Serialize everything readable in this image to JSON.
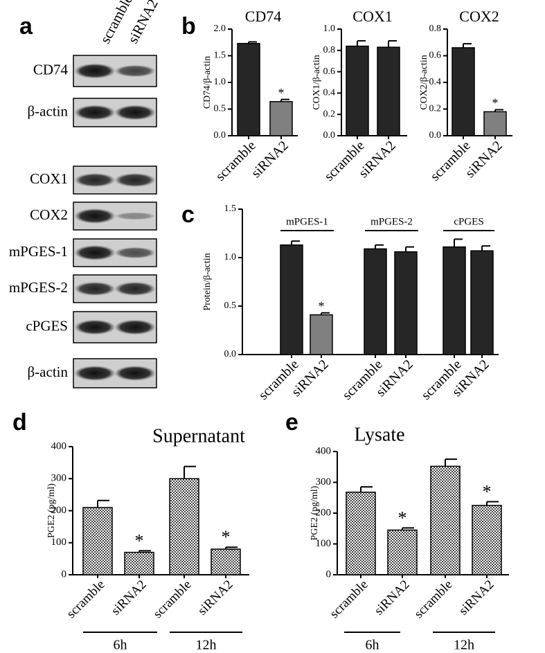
{
  "panel_labels": [
    "a",
    "b",
    "c",
    "d",
    "e"
  ],
  "blot": {
    "lanes": [
      "scramble",
      "siRNA2"
    ],
    "rows": [
      "CD74",
      "β-actin",
      "COX1",
      "COX2",
      "mPGES-1",
      "mPGES-2",
      "cPGES",
      "β-actin"
    ]
  },
  "chart_data": [
    {
      "type": "bar",
      "title": "CD74",
      "ylabel": "CD74/β-actin",
      "categories": [
        "scramble",
        "siRNA2"
      ],
      "values": [
        1.73,
        0.64
      ],
      "errors": [
        0.03,
        0.04
      ],
      "colors": [
        "#262626",
        "#808080"
      ],
      "ylim": [
        0,
        2
      ],
      "yticks": [
        {
          "value": 0,
          "label": "0.0"
        },
        0.5,
        {
          "value": 1,
          "label": "1.0"
        },
        1.5,
        {
          "value": 2,
          "label": "2.0"
        }
      ],
      "annotations": [
        {
          "text": "*",
          "index": 1
        }
      ]
    },
    {
      "type": "bar",
      "title": "COX1",
      "ylabel": "COX1/β-actin",
      "categories": [
        "scramble",
        "siRNA2"
      ],
      "values": [
        0.84,
        0.83
      ],
      "errors": [
        0.05,
        0.06
      ],
      "colors": [
        "#262626",
        "#262626"
      ],
      "ylim": [
        0,
        1
      ],
      "yticks": [
        {
          "value": 0,
          "label": "0.0"
        },
        0.2,
        0.4,
        0.6,
        0.8,
        {
          "value": 1,
          "label": "1.0"
        }
      ],
      "annotations": []
    },
    {
      "type": "bar",
      "title": "COX2",
      "ylabel": "COX2/β-actin",
      "categories": [
        "scramble",
        "siRNA2"
      ],
      "values": [
        0.66,
        0.18
      ],
      "errors": [
        0.03,
        0.015
      ],
      "colors": [
        "#262626",
        "#808080"
      ],
      "ylim": [
        0,
        0.8
      ],
      "yticks": [
        {
          "value": 0,
          "label": "0.0"
        },
        0.2,
        0.4,
        0.6,
        0.8
      ],
      "annotations": [
        {
          "text": "*",
          "index": 1
        }
      ]
    },
    {
      "type": "bar",
      "ylabel": "Protein/β-actin",
      "categories": [
        "scramble",
        "siRNA2",
        "scramble",
        "siRNA2",
        "scramble",
        "siRNA2"
      ],
      "values": [
        1.13,
        0.41,
        1.09,
        1.06,
        1.11,
        1.07
      ],
      "errors": [
        0.04,
        0.02,
        0.04,
        0.05,
        0.08,
        0.05
      ],
      "colors": [
        "#262626",
        "#808080",
        "#262626",
        "#262626",
        "#262626",
        "#262626"
      ],
      "ylim": [
        0,
        1.5
      ],
      "yticks": [
        {
          "value": 0,
          "label": "0.0"
        },
        0.5,
        {
          "value": 1,
          "label": "1.0"
        },
        1.5
      ],
      "groups": [
        "mPGES-1",
        "mPGES-2",
        "cPGES"
      ],
      "annotations": [
        {
          "text": "*",
          "index": 1
        }
      ]
    },
    {
      "type": "bar",
      "title": "Supernatant",
      "ylabel": "PGE2 (pg/ml)",
      "categories": [
        "scramble",
        "siRNA2",
        "scramble",
        "siRNA2"
      ],
      "values": [
        210,
        70,
        300,
        80
      ],
      "errors": [
        22,
        5,
        38,
        6
      ],
      "bar_pattern": "checkered",
      "ylim": [
        0,
        400
      ],
      "yticks": [
        0,
        100,
        200,
        300,
        400
      ],
      "groups": [
        "6h",
        "12h"
      ],
      "annotations": [
        {
          "text": "*",
          "index": 1
        },
        {
          "text": "*",
          "index": 3
        }
      ]
    },
    {
      "type": "bar",
      "title": "Lysate",
      "ylabel": "PGE2 (pg/ml)",
      "categories": [
        "scramble",
        "siRNA2",
        "scramble",
        "siRNA2"
      ],
      "values": [
        268,
        145,
        352,
        225
      ],
      "errors": [
        17,
        7,
        23,
        12
      ],
      "bar_pattern": "checkered",
      "ylim": [
        0,
        400
      ],
      "yticks": [
        0,
        100,
        200,
        300,
        400
      ],
      "groups": [
        "6h",
        "12h"
      ],
      "annotations": [
        {
          "text": "*",
          "index": 1
        },
        {
          "text": "*",
          "index": 3
        }
      ]
    }
  ]
}
